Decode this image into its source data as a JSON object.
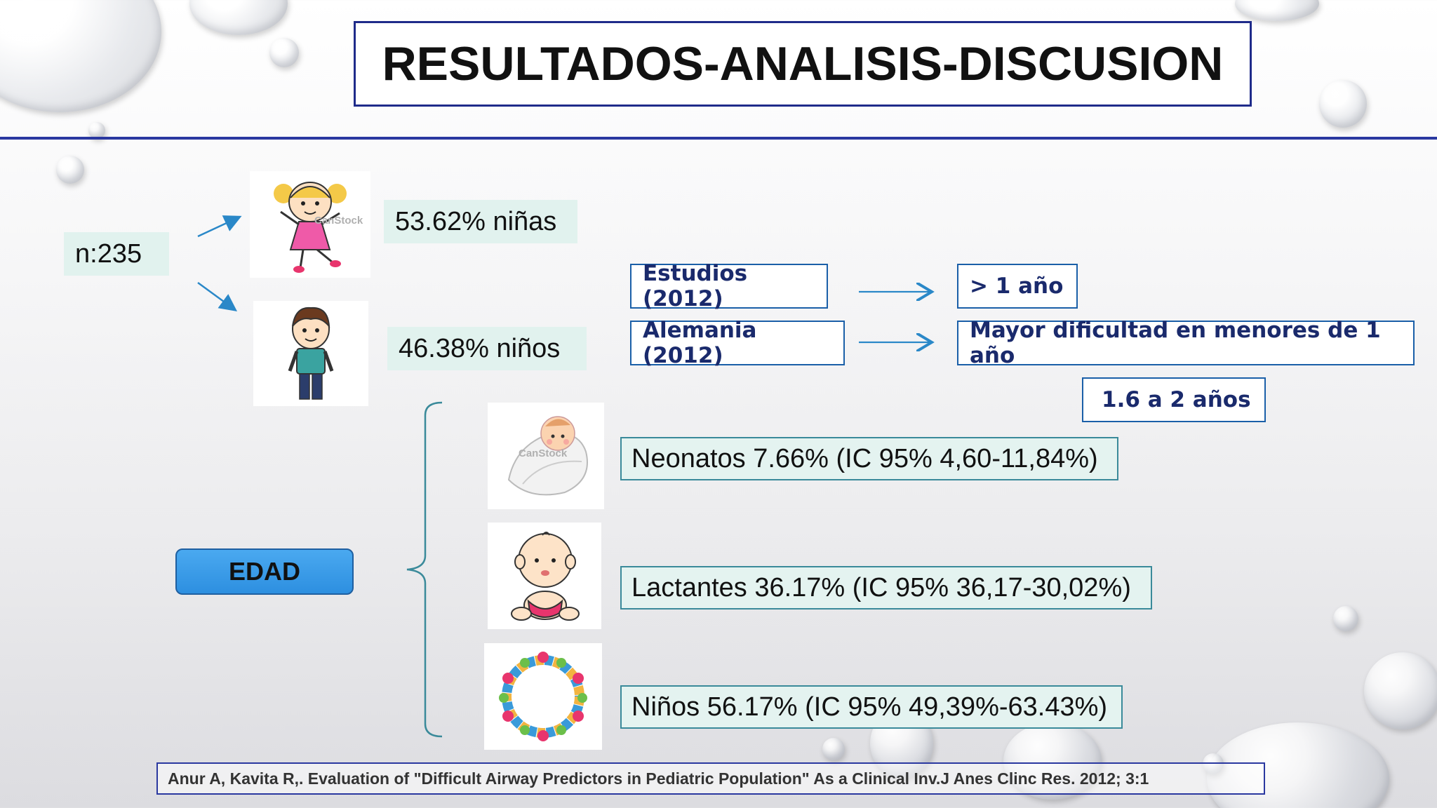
{
  "title": "RESULTADOS-ANALISIS-DISCUSION",
  "sample": {
    "n_label": "n:235"
  },
  "gender": {
    "girls_label": "53.62% niñas",
    "boys_label": "46.38% niños"
  },
  "studies": [
    {
      "label": "Estudios (2012)",
      "result": "> 1 año"
    },
    {
      "label": "Alemania (2012)",
      "result": "Mayor dificultad en menores de 1 año"
    }
  ],
  "extra_range": "1.6 a 2 años",
  "edad_label": "EDAD",
  "age_groups": [
    {
      "label": "Neonatos 7.66% (IC 95% 4,60-11,84%)"
    },
    {
      "label": "Lactantes 36.17% (IC 95% 36,17-30,02%)"
    },
    {
      "label": "Niños 56.17% (IC 95% 49,39%-63.43%)"
    }
  ],
  "watermark": "CanStock",
  "citation": "Anur A, Kavita R,. Evaluation of \"Difficult Airway Predictors in Pediatric Population\" As a Clinical Inv.J Anes Clinc Res. 2012; 3:1",
  "colors": {
    "title_rule": "#2a38a0",
    "blue_box_border": "#1a5fa8",
    "blue_box_text": "#1a2a6c",
    "mint": "#e1f2ee",
    "edad_button": "#2d8fe0",
    "arrow": "#2a88c8"
  }
}
